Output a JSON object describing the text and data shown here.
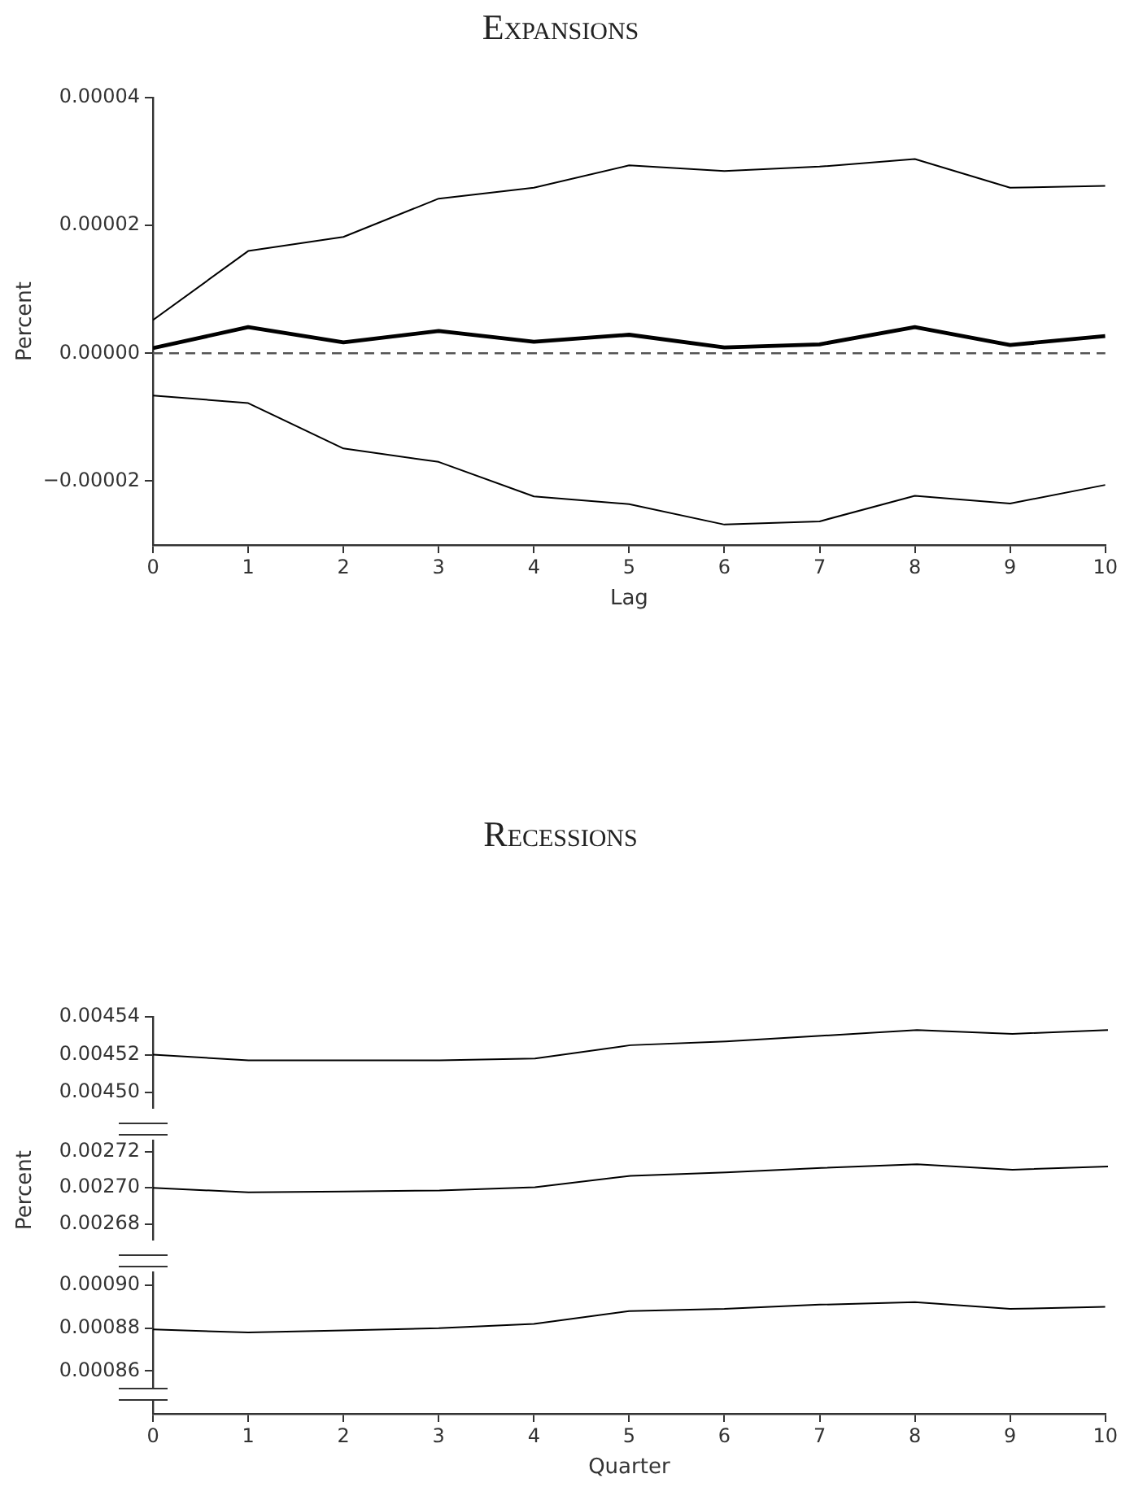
{
  "chart_data": [
    {
      "type": "line",
      "title": "Expansions",
      "xlabel": "Lag",
      "ylabel": "Percent",
      "x": [
        0,
        1,
        2,
        3,
        4,
        5,
        6,
        7,
        8,
        9,
        10
      ],
      "xlim": [
        0,
        10
      ],
      "xticks": [
        0,
        1,
        2,
        3,
        4,
        5,
        6,
        7,
        8,
        9,
        10
      ],
      "ylim": [
        -3e-05,
        4e-05
      ],
      "yticks": [
        {
          "value": -2e-05,
          "label": "−0.00002"
        },
        {
          "value": 0,
          "label": "0.00000"
        },
        {
          "value": 2e-05,
          "label": "0.00002"
        },
        {
          "value": 4e-05,
          "label": "0.00004"
        }
      ],
      "marker": "none",
      "line_style": "solid",
      "series": [
        {
          "color": "#000000",
          "values": [
            5.2e-06,
            1.6e-05,
            1.82e-05,
            2.42e-05,
            2.59e-05,
            2.94e-05,
            2.85e-05,
            2.92e-05,
            3.04e-05,
            2.59e-05,
            2.62e-05
          ]
        },
        {
          "color": "#000000",
          "values": [
            8e-07,
            4.1e-06,
            1.7e-06,
            3.5e-06,
            1.8e-06,
            2.9e-06,
            9e-07,
            1.4e-06,
            4.1e-06,
            1.3e-06,
            2.7e-06
          ]
        },
        {
          "color": "#000000",
          "values": [
            -6.6e-06,
            -7.8e-06,
            -1.49e-05,
            -1.7e-05,
            -2.24e-05,
            -2.36e-05,
            -2.68e-05,
            -2.63e-05,
            -2.23e-05,
            -2.35e-05,
            -2.06e-05
          ]
        }
      ],
      "ref_lines": [
        {
          "axis": "y",
          "value": 0,
          "color": "#555555",
          "line_style": "dashed"
        }
      ]
    },
    {
      "type": "line",
      "title": "Recessions",
      "x": [
        0,
        1,
        2,
        3,
        4,
        5,
        6,
        7,
        8,
        9,
        10
      ],
      "xlim": [
        0,
        10
      ],
      "xticks": [
        0,
        1,
        2,
        3,
        4,
        5,
        6,
        7,
        8,
        9,
        10
      ],
      "ylim": [
        0.004492,
        0.00454
      ],
      "yticks": [
        {
          "value": 0.0045,
          "label": "0.00450"
        },
        {
          "value": 0.00452,
          "label": "0.00452"
        },
        {
          "value": 0.00454,
          "label": "0.00454"
        }
      ],
      "tick_labels": "y",
      "marker": "none",
      "line_style": "solid",
      "series": [
        {
          "color": "#000000",
          "values": [
            0.00452,
            0.004517,
            0.004517,
            0.004517,
            0.004518,
            0.004525,
            0.004527,
            0.00453,
            0.004533,
            0.004531,
            0.004533
          ]
        }
      ]
    },
    {
      "type": "line",
      "ylabel": "Percent",
      "x": [
        0,
        1,
        2,
        3,
        4,
        5,
        6,
        7,
        8,
        9,
        10
      ],
      "xlim": [
        0,
        10
      ],
      "xticks": [
        0,
        1,
        2,
        3,
        4,
        5,
        6,
        7,
        8,
        9,
        10
      ],
      "ylim": [
        0.0026715,
        0.002726
      ],
      "yticks": [
        {
          "value": 0.00268,
          "label": "0.00268"
        },
        {
          "value": 0.0027,
          "label": "0.00270"
        },
        {
          "value": 0.00272,
          "label": "0.00272"
        }
      ],
      "tick_labels": "y",
      "marker": "none",
      "line_style": "solid",
      "series": [
        {
          "color": "#000000",
          "values": [
            0.0027,
            0.0026975,
            0.002698,
            0.0026985,
            0.0027003,
            0.0027066,
            0.0027085,
            0.002711,
            0.002713,
            0.00271,
            0.0027118
          ]
        }
      ]
    },
    {
      "type": "line",
      "xlabel": "Quarter",
      "x": [
        0,
        1,
        2,
        3,
        4,
        5,
        6,
        7,
        8,
        9,
        10
      ],
      "xlim": [
        0,
        10
      ],
      "xticks": [
        0,
        1,
        2,
        3,
        4,
        5,
        6,
        7,
        8,
        9,
        10
      ],
      "ylim": [
        0.00084,
        0.000906
      ],
      "yticks": [
        {
          "value": 0.00086,
          "label": "0.00086"
        },
        {
          "value": 0.00088,
          "label": "0.00088"
        },
        {
          "value": 0.0009,
          "label": "0.00090"
        }
      ],
      "marker": "none",
      "line_style": "solid",
      "series": [
        {
          "color": "#000000",
          "values": [
            0.0008794,
            0.000878,
            0.000879,
            0.00088,
            0.000882,
            0.000888,
            0.000889,
            0.000891,
            0.0008922,
            0.000889,
            0.00089
          ]
        }
      ]
    }
  ]
}
